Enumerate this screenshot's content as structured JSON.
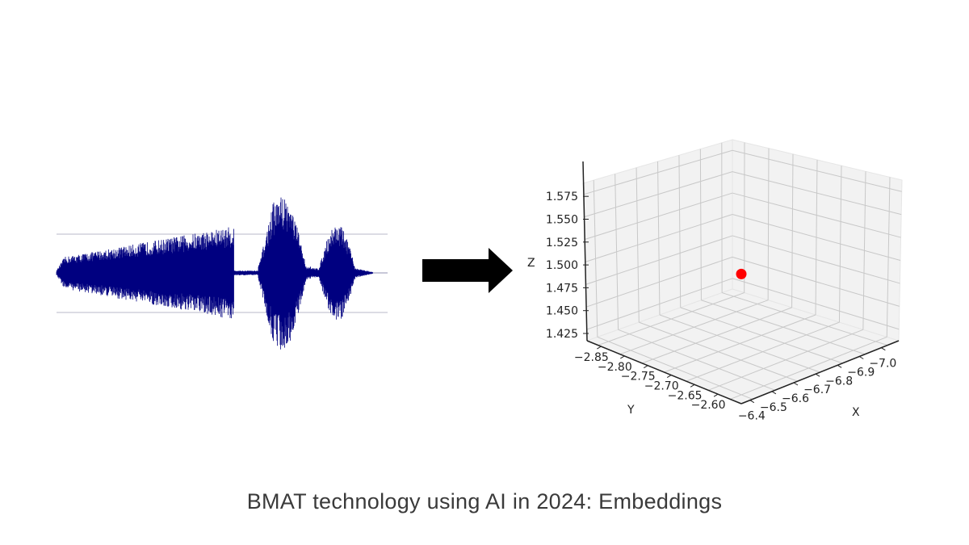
{
  "caption": "BMAT technology using AI in 2024: Embeddings",
  "colors": {
    "waveform": "#000080",
    "arrow": "#000000",
    "point": "#ff0000",
    "pane": "#f2f2f2",
    "grid": "#c8c8c8"
  },
  "waveform": {
    "description_label": "",
    "channels": 1
  },
  "chart_data": {
    "type": "scatter3d",
    "title": "",
    "xlabel": "X",
    "ylabel": "Y",
    "zlabel": "Z",
    "x_ticks": [
      "−6.4",
      "−6.5",
      "−6.6",
      "−6.7",
      "−6.8",
      "−6.9",
      "−7.0"
    ],
    "y_ticks": [
      "−2.85",
      "−2.80",
      "−2.75",
      "−2.70",
      "−2.65",
      "−2.60"
    ],
    "z_ticks": [
      "1.425",
      "1.450",
      "1.475",
      "1.500",
      "1.525",
      "1.550",
      "1.575"
    ],
    "xlim": [
      -6.35,
      -7.05
    ],
    "ylim": [
      -2.875,
      -2.575
    ],
    "zlim": [
      1.41,
      1.59
    ],
    "points": [
      {
        "x": -6.7,
        "y": -2.73,
        "z": 1.5,
        "color": "#ff0000"
      }
    ]
  }
}
